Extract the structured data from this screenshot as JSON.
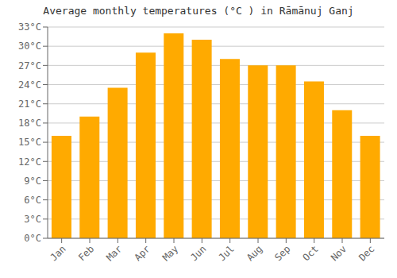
{
  "chart_data": {
    "type": "bar",
    "title": "Average monthly temperatures (°C ) in Rāmānuj Ganj",
    "categories": [
      "Jan",
      "Feb",
      "Mar",
      "Apr",
      "May",
      "Jun",
      "Jul",
      "Aug",
      "Sep",
      "Oct",
      "Nov",
      "Dec"
    ],
    "values": [
      16.0,
      19.0,
      23.5,
      29.0,
      32.0,
      31.0,
      28.0,
      27.0,
      27.0,
      24.5,
      20.0,
      16.0
    ],
    "color": "#FFAA00",
    "ylim": [
      0,
      33
    ],
    "yticks": [
      {
        "value": 0,
        "label": "0°C"
      },
      {
        "value": 3,
        "label": "3°C"
      },
      {
        "value": 6,
        "label": "6°C"
      },
      {
        "value": 9,
        "label": "9°C"
      },
      {
        "value": 12,
        "label": "12°C"
      },
      {
        "value": 15,
        "label": "15°C"
      },
      {
        "value": 18,
        "label": "18°C"
      },
      {
        "value": 21,
        "label": "21°C"
      },
      {
        "value": 24,
        "label": "24°C"
      },
      {
        "value": 27,
        "label": "27°C"
      },
      {
        "value": 30,
        "label": "30°C"
      },
      {
        "value": 33,
        "label": "33°C"
      }
    ],
    "grid": true
  }
}
